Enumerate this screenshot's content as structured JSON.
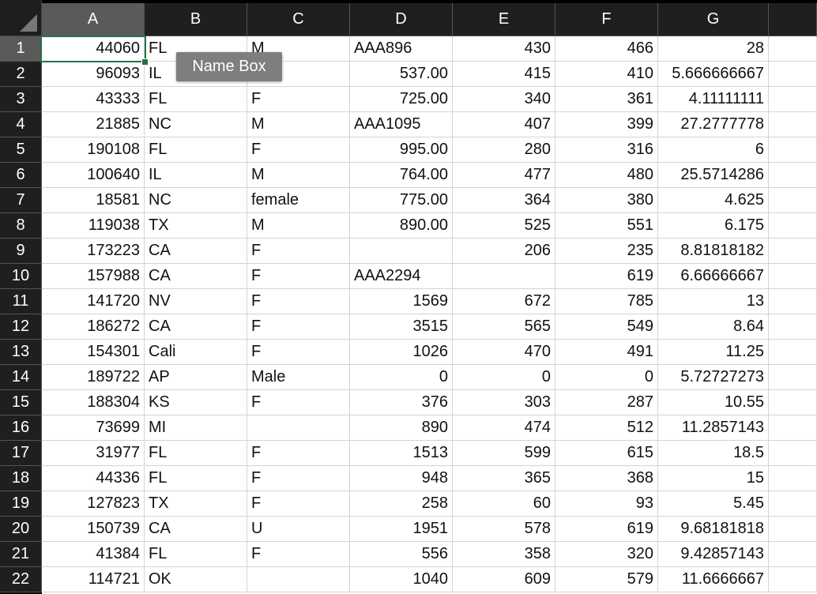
{
  "sheet": {
    "column_headers": [
      "A",
      "B",
      "C",
      "D",
      "E",
      "F",
      "G"
    ],
    "selected_column": "A",
    "selected_row": 1,
    "active_cell": "A1",
    "rows": [
      {
        "num": "1",
        "cells": [
          "44060",
          "FL",
          "M",
          "AAA896",
          "430",
          "466",
          "28"
        ]
      },
      {
        "num": "2",
        "cells": [
          "96093",
          "IL",
          "",
          "537.00",
          "415",
          "410",
          "5.666666667"
        ]
      },
      {
        "num": "3",
        "cells": [
          "43333",
          "FL",
          "F",
          "725.00",
          "340",
          "361",
          "4.11111111"
        ]
      },
      {
        "num": "4",
        "cells": [
          "21885",
          "NC",
          "M",
          "AAA1095",
          "407",
          "399",
          "27.2777778"
        ]
      },
      {
        "num": "5",
        "cells": [
          "190108",
          "FL",
          "F",
          "995.00",
          "280",
          "316",
          "6"
        ]
      },
      {
        "num": "6",
        "cells": [
          "100640",
          "IL",
          "M",
          "764.00",
          "477",
          "480",
          "25.5714286"
        ]
      },
      {
        "num": "7",
        "cells": [
          "18581",
          "NC",
          "female",
          "775.00",
          "364",
          "380",
          "4.625"
        ]
      },
      {
        "num": "8",
        "cells": [
          "119038",
          "TX",
          "M",
          "890.00",
          "525",
          "551",
          "6.175"
        ]
      },
      {
        "num": "9",
        "cells": [
          "173223",
          "CA",
          "F",
          "",
          "206",
          "235",
          "8.81818182"
        ]
      },
      {
        "num": "10",
        "cells": [
          "157988",
          "CA",
          "F",
          "AAA2294",
          "",
          "619",
          "6.66666667"
        ]
      },
      {
        "num": "11",
        "cells": [
          "141720",
          "NV",
          "F",
          "1569",
          "672",
          "785",
          "13"
        ]
      },
      {
        "num": "12",
        "cells": [
          "186272",
          "CA",
          "F",
          "3515",
          "565",
          "549",
          "8.64"
        ]
      },
      {
        "num": "13",
        "cells": [
          "154301",
          "Cali",
          "F",
          "1026",
          "470",
          "491",
          "11.25"
        ]
      },
      {
        "num": "14",
        "cells": [
          "189722",
          "AP",
          "Male",
          "0",
          "0",
          "0",
          "5.72727273"
        ]
      },
      {
        "num": "15",
        "cells": [
          "188304",
          "KS",
          "F",
          "376",
          "303",
          "287",
          "10.55"
        ]
      },
      {
        "num": "16",
        "cells": [
          "73699",
          "MI",
          "",
          "890",
          "474",
          "512",
          "11.2857143"
        ]
      },
      {
        "num": "17",
        "cells": [
          "31977",
          "FL",
          "F",
          "1513",
          "599",
          "615",
          "18.5"
        ]
      },
      {
        "num": "18",
        "cells": [
          "44336",
          "FL",
          "F",
          "948",
          "365",
          "368",
          "15"
        ]
      },
      {
        "num": "19",
        "cells": [
          "127823",
          "TX",
          "F",
          "258",
          "60",
          "93",
          "5.45"
        ]
      },
      {
        "num": "20",
        "cells": [
          "150739",
          "CA",
          "U",
          "1951",
          "578",
          "619",
          "9.68181818"
        ]
      },
      {
        "num": "21",
        "cells": [
          "41384",
          "FL",
          "F",
          "556",
          "358",
          "320",
          "9.42857143"
        ]
      },
      {
        "num": "22",
        "cells": [
          "114721",
          "OK",
          "",
          "1040",
          "609",
          "579",
          "11.6666667"
        ]
      }
    ]
  },
  "tooltip": {
    "text": "Name Box"
  },
  "colors": {
    "accent": "#217346",
    "header_bg": "#1f1f1f",
    "header_selected_bg": "#5a5a5a",
    "gridline": "#d4d4d4"
  },
  "icons": {
    "select_all": "select-all-triangle-icon"
  }
}
